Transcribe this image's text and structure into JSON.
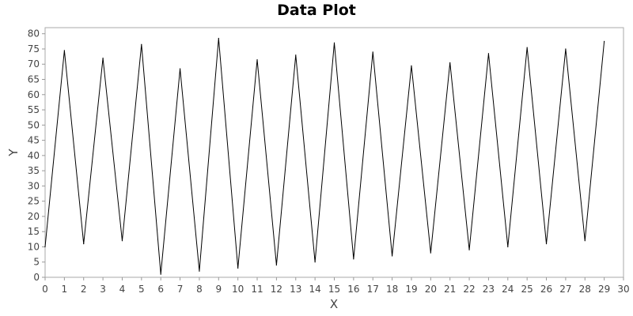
{
  "chart_data": {
    "type": "line",
    "title": "Data Plot",
    "xlabel": "X",
    "ylabel": "Y",
    "xlim": [
      0,
      30
    ],
    "ylim": [
      0,
      82
    ],
    "x_ticks": [
      0,
      1,
      2,
      3,
      4,
      5,
      6,
      7,
      8,
      9,
      10,
      11,
      12,
      13,
      14,
      15,
      16,
      17,
      18,
      19,
      20,
      21,
      22,
      23,
      24,
      25,
      26,
      27,
      28,
      29,
      30
    ],
    "y_ticks": [
      0,
      5,
      10,
      15,
      20,
      25,
      30,
      35,
      40,
      45,
      50,
      55,
      60,
      65,
      70,
      75,
      80
    ],
    "grid": false,
    "legend": "none",
    "series": [
      {
        "x": [
          0,
          1,
          2,
          3,
          4,
          5,
          6,
          7,
          8,
          9,
          10,
          11,
          12,
          13,
          14,
          15,
          16,
          17,
          18,
          19,
          20,
          21,
          22,
          23,
          24,
          25,
          26,
          27,
          28,
          29
        ],
        "y": [
          10,
          74.5,
          11,
          72,
          12,
          76.5,
          1,
          68.5,
          2,
          78.5,
          3,
          71.5,
          4,
          73,
          5,
          77,
          6,
          74,
          7,
          69.5,
          8,
          70.5,
          9,
          73.5,
          10,
          75.5,
          11,
          75,
          12,
          77.5
        ],
        "color": "#000000"
      }
    ]
  }
}
